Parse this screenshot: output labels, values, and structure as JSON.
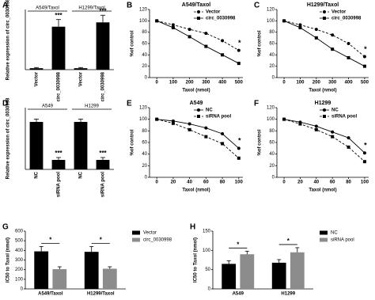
{
  "chart_data": [
    {
      "type": "bar",
      "label": "A",
      "ylabel": "Relative expression of circ_0030998",
      "categories": [
        "Vector",
        "circ_0030998",
        "Vector",
        "circ_0030998"
      ],
      "values": [
        1,
        30,
        1,
        33
      ],
      "errors": [
        0.5,
        5,
        0.5,
        5
      ],
      "color": "#000000",
      "ylim": [
        0,
        42
      ],
      "groups": [
        "A549/Taxol",
        "H1299/Taxol"
      ],
      "annotations": [
        null,
        "***",
        null,
        "***"
      ]
    },
    {
      "type": "line",
      "label": "B",
      "title": "A549/Taxol",
      "xlabel": "Taxol (nmol)",
      "ylabel": "%of control",
      "x": [
        0,
        100,
        200,
        300,
        400,
        500
      ],
      "xlim": [
        -25,
        525
      ],
      "xticks": [
        0,
        100,
        200,
        300,
        400,
        500
      ],
      "ylim": [
        0,
        120
      ],
      "yticks": [
        0,
        20,
        40,
        60,
        80,
        100,
        120
      ],
      "annotation": "*",
      "series": [
        {
          "name": "Vector",
          "color": "#000000",
          "dash": true,
          "marker": "circle",
          "values": [
            100,
            93,
            85,
            78,
            65,
            48
          ]
        },
        {
          "name": "circ_0030998",
          "color": "#000000",
          "dash": false,
          "marker": "square",
          "values": [
            100,
            88,
            72,
            55,
            40,
            25
          ]
        }
      ]
    },
    {
      "type": "line",
      "label": "C",
      "title": "H1299/Taxol",
      "xlabel": "Taxol (nmol)",
      "ylabel": "%of control",
      "x": [
        0,
        100,
        200,
        300,
        400,
        500
      ],
      "xlim": [
        -25,
        525
      ],
      "xticks": [
        0,
        100,
        200,
        300,
        400,
        500
      ],
      "ylim": [
        0,
        120
      ],
      "yticks": [
        0,
        20,
        40,
        60,
        80,
        100,
        120
      ],
      "annotation": "*",
      "series": [
        {
          "name": "Vector",
          "color": "#000000",
          "dash": true,
          "marker": "circle",
          "values": [
            100,
            93,
            85,
            75,
            60,
            37
          ]
        },
        {
          "name": "circ_0030998",
          "color": "#000000",
          "dash": false,
          "marker": "square",
          "values": [
            100,
            88,
            70,
            50,
            35,
            20
          ]
        }
      ]
    },
    {
      "type": "bar",
      "label": "D",
      "ylabel": "Relative expression of circ_0030998",
      "categories": [
        "NC",
        "siRNA pool",
        "NC",
        "siRNA pool"
      ],
      "values": [
        1.0,
        0.2,
        1.0,
        0.2
      ],
      "errors": [
        0.06,
        0.05,
        0.06,
        0.05
      ],
      "color": "#000000",
      "ylim": [
        0,
        1.3
      ],
      "groups": [
        "A549",
        "H1299"
      ],
      "annotations": [
        null,
        "***",
        null,
        "***"
      ]
    },
    {
      "type": "line",
      "label": "E",
      "title": "A549",
      "xlabel": "Taxol (nmol)",
      "ylabel": "%of control",
      "x": [
        0,
        20,
        40,
        60,
        80,
        100
      ],
      "xlim": [
        -5,
        105
      ],
      "xticks": [
        0,
        20,
        40,
        60,
        80,
        100
      ],
      "ylim": [
        0,
        120
      ],
      "yticks": [
        0,
        20,
        40,
        60,
        80,
        100,
        120
      ],
      "annotation": "*",
      "series": [
        {
          "name": "NC",
          "color": "#000000",
          "dash": false,
          "marker": "circle",
          "values": [
            100,
            97,
            92,
            85,
            75,
            50
          ]
        },
        {
          "name": "siRNA pool",
          "color": "#000000",
          "dash": true,
          "marker": "square",
          "values": [
            100,
            93,
            82,
            70,
            58,
            33
          ]
        }
      ]
    },
    {
      "type": "line",
      "label": "F",
      "title": "H1299",
      "xlabel": "Taxol (nmol)",
      "ylabel": "%of control",
      "x": [
        0,
        20,
        40,
        60,
        80,
        100
      ],
      "xlim": [
        -5,
        105
      ],
      "xticks": [
        0,
        20,
        40,
        60,
        80,
        100
      ],
      "ylim": [
        0,
        120
      ],
      "yticks": [
        0,
        20,
        40,
        60,
        80,
        100,
        120
      ],
      "annotation": "*",
      "series": [
        {
          "name": "NC",
          "color": "#000000",
          "dash": false,
          "marker": "circle",
          "values": [
            100,
            95,
            88,
            78,
            68,
            42
          ]
        },
        {
          "name": "siRNA pool",
          "color": "#000000",
          "dash": true,
          "marker": "square",
          "values": [
            100,
            92,
            82,
            70,
            52,
            27
          ]
        }
      ]
    },
    {
      "type": "grouped-bar",
      "label": "G",
      "ylabel": "IC50 to Taxol (nmol)",
      "categories": [
        "A549/Taxol",
        "H1299/Taxol"
      ],
      "ylim": [
        0,
        600
      ],
      "yticks": [
        0,
        100,
        200,
        300,
        400,
        500,
        600
      ],
      "annotations": [
        "*",
        "*"
      ],
      "series": [
        {
          "name": "Vector",
          "color": "#000000",
          "values": [
            390,
            385
          ],
          "errors": [
            50,
            55
          ]
        },
        {
          "name": "circ_0030998",
          "color": "#8c8c8c",
          "values": [
            205,
            210
          ],
          "errors": [
            25,
            20
          ]
        }
      ]
    },
    {
      "type": "grouped-bar",
      "label": "H",
      "ylabel": "IC50 to Taxol (nmol)",
      "categories": [
        "A549",
        "H1299"
      ],
      "ylim": [
        0,
        150
      ],
      "yticks": [
        0,
        50,
        100,
        150
      ],
      "annotations": [
        "*",
        "*"
      ],
      "series": [
        {
          "name": "NC",
          "color": "#000000",
          "values": [
            65,
            68
          ],
          "errors": [
            8,
            8
          ]
        },
        {
          "name": "siRNA pool",
          "color": "#8c8c8c",
          "values": [
            90,
            95
          ],
          "errors": [
            8,
            12
          ]
        }
      ]
    }
  ]
}
